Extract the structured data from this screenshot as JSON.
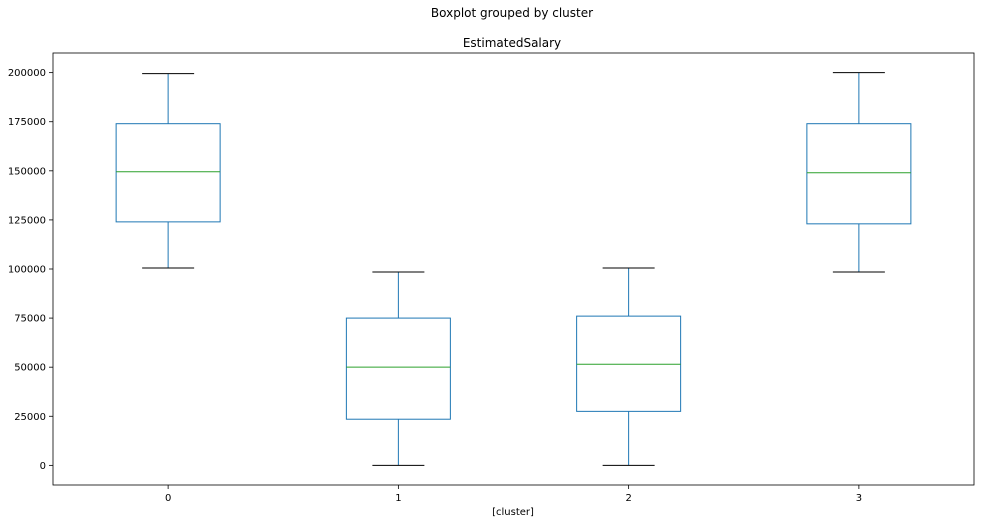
{
  "chart_data": {
    "type": "box",
    "suptitle": "Boxplot grouped by cluster",
    "title": "EstimatedSalary",
    "xlabel": "[cluster]",
    "ylabel": "",
    "categories": [
      "0",
      "1",
      "2",
      "3"
    ],
    "boxes": [
      {
        "category": "0",
        "whisker_low": 100500,
        "q1": 124000,
        "median": 149500,
        "q3": 174000,
        "whisker_high": 199500
      },
      {
        "category": "1",
        "whisker_low": 0,
        "q1": 23500,
        "median": 50000,
        "q3": 75000,
        "whisker_high": 98500
      },
      {
        "category": "2",
        "whisker_low": 0,
        "q1": 27500,
        "median": 51500,
        "q3": 76000,
        "whisker_high": 100500
      },
      {
        "category": "3",
        "whisker_low": 98500,
        "q1": 123000,
        "median": 149000,
        "q3": 174000,
        "whisker_high": 200000
      }
    ],
    "ylim": [
      -10000,
      210000
    ],
    "yticks": [
      0,
      25000,
      50000,
      75000,
      100000,
      125000,
      150000,
      175000,
      200000
    ],
    "ytick_labels": [
      "0",
      "25000",
      "50000",
      "75000",
      "100000",
      "125000",
      "150000",
      "175000",
      "200000"
    ],
    "grid": false,
    "colors": {
      "box": "#1f77b4",
      "median": "#2ca02c",
      "cap": "#000000",
      "frame": "#000000"
    }
  }
}
